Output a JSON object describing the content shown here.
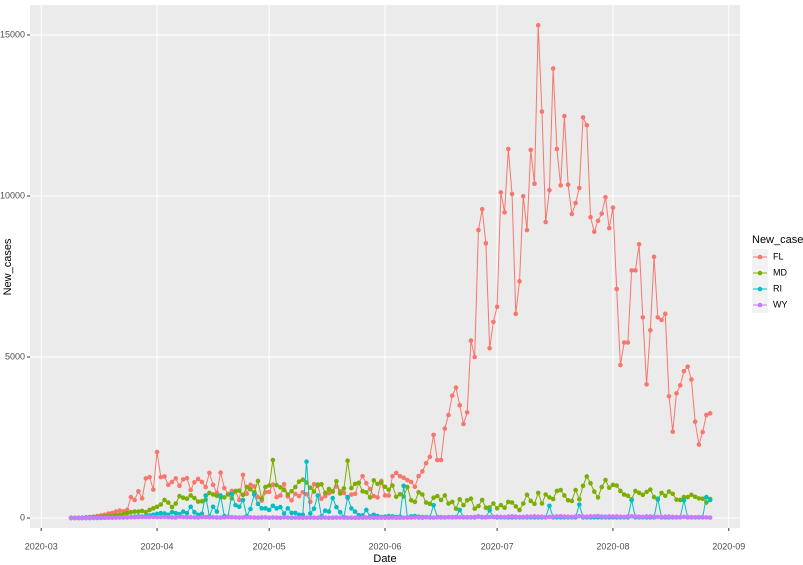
{
  "chart_data": {
    "type": "line",
    "x_label": "Date",
    "y_label": "New_cases",
    "legend_title": "New_cases",
    "legend_position": "right",
    "grid": true,
    "x": [
      "2020-03-09",
      "2020-03-10",
      "2020-03-11",
      "2020-03-12",
      "2020-03-13",
      "2020-03-14",
      "2020-03-15",
      "2020-03-16",
      "2020-03-17",
      "2020-03-18",
      "2020-03-19",
      "2020-03-20",
      "2020-03-21",
      "2020-03-22",
      "2020-03-23",
      "2020-03-24",
      "2020-03-25",
      "2020-03-26",
      "2020-03-27",
      "2020-03-28",
      "2020-03-29",
      "2020-03-30",
      "2020-03-31",
      "2020-04-01",
      "2020-04-02",
      "2020-04-03",
      "2020-04-04",
      "2020-04-05",
      "2020-04-06",
      "2020-04-07",
      "2020-04-08",
      "2020-04-09",
      "2020-04-10",
      "2020-04-11",
      "2020-04-12",
      "2020-04-13",
      "2020-04-14",
      "2020-04-15",
      "2020-04-16",
      "2020-04-17",
      "2020-04-18",
      "2020-04-19",
      "2020-04-20",
      "2020-04-21",
      "2020-04-22",
      "2020-04-23",
      "2020-04-24",
      "2020-04-25",
      "2020-04-26",
      "2020-04-27",
      "2020-04-28",
      "2020-04-29",
      "2020-04-30",
      "2020-05-01",
      "2020-05-02",
      "2020-05-03",
      "2020-05-04",
      "2020-05-05",
      "2020-05-06",
      "2020-05-07",
      "2020-05-08",
      "2020-05-09",
      "2020-05-10",
      "2020-05-11",
      "2020-05-12",
      "2020-05-13",
      "2020-05-14",
      "2020-05-15",
      "2020-05-16",
      "2020-05-17",
      "2020-05-18",
      "2020-05-19",
      "2020-05-20",
      "2020-05-21",
      "2020-05-22",
      "2020-05-23",
      "2020-05-24",
      "2020-05-25",
      "2020-05-26",
      "2020-05-27",
      "2020-05-28",
      "2020-05-29",
      "2020-05-30",
      "2020-05-31",
      "2020-06-01",
      "2020-06-02",
      "2020-06-03",
      "2020-06-04",
      "2020-06-05",
      "2020-06-06",
      "2020-06-07",
      "2020-06-08",
      "2020-06-09",
      "2020-06-10",
      "2020-06-11",
      "2020-06-12",
      "2020-06-13",
      "2020-06-14",
      "2020-06-15",
      "2020-06-16",
      "2020-06-17",
      "2020-06-18",
      "2020-06-19",
      "2020-06-20",
      "2020-06-21",
      "2020-06-22",
      "2020-06-23",
      "2020-06-24",
      "2020-06-25",
      "2020-06-26",
      "2020-06-27",
      "2020-06-28",
      "2020-06-29",
      "2020-06-30",
      "2020-07-01",
      "2020-07-02",
      "2020-07-03",
      "2020-07-04",
      "2020-07-05",
      "2020-07-06",
      "2020-07-07",
      "2020-07-08",
      "2020-07-09",
      "2020-07-10",
      "2020-07-11",
      "2020-07-12",
      "2020-07-13",
      "2020-07-14",
      "2020-07-15",
      "2020-07-16",
      "2020-07-17",
      "2020-07-18",
      "2020-07-19",
      "2020-07-20",
      "2020-07-21",
      "2020-07-22",
      "2020-07-23",
      "2020-07-24",
      "2020-07-25",
      "2020-07-26",
      "2020-07-27",
      "2020-07-28",
      "2020-07-29",
      "2020-07-30",
      "2020-07-31",
      "2020-08-01",
      "2020-08-02",
      "2020-08-03",
      "2020-08-04",
      "2020-08-05",
      "2020-08-06",
      "2020-08-07",
      "2020-08-08",
      "2020-08-09",
      "2020-08-10",
      "2020-08-11",
      "2020-08-12",
      "2020-08-13",
      "2020-08-14",
      "2020-08-15",
      "2020-08-16",
      "2020-08-17",
      "2020-08-18",
      "2020-08-19",
      "2020-08-20",
      "2020-08-21",
      "2020-08-22",
      "2020-08-23",
      "2020-08-24",
      "2020-08-25",
      "2020-08-26",
      "2020-08-27"
    ],
    "series": [
      {
        "name": "FL",
        "color": "#F8766D",
        "values": [
          3,
          2,
          5,
          10,
          20,
          30,
          40,
          60,
          80,
          100,
          140,
          160,
          200,
          230,
          210,
          250,
          650,
          560,
          830,
          610,
          1230,
          1270,
          880,
          2050,
          1270,
          1290,
          1030,
          1120,
          1230,
          1000,
          1200,
          1240,
          870,
          1110,
          1210,
          1120,
          960,
          1400,
          1030,
          780,
          1410,
          930,
          750,
          840,
          820,
          560,
          1340,
          750,
          1030,
          980,
          650,
          540,
          800,
          810,
          1040,
          650,
          700,
          1050,
          670,
          550,
          750,
          680,
          800,
          740,
          500,
          1050,
          1000,
          600,
          680,
          770,
          830,
          980,
          830,
          780,
          620,
          730,
          750,
          1090,
          1300,
          1080,
          900,
          680,
          640,
          1150,
          700,
          700,
          1300,
          1400,
          1300,
          1250,
          1180,
          1120,
          970,
          1300,
          1450,
          1700,
          1900,
          2580,
          1800,
          1800,
          2780,
          3200,
          3800,
          4050,
          3500,
          2920,
          3280,
          5510,
          5000,
          8940,
          9590,
          8530,
          5270,
          6090,
          6560,
          10110,
          9490,
          11460,
          10060,
          6340,
          7350,
          9990,
          8940,
          11430,
          10380,
          15300,
          12620,
          9190,
          10180,
          13960,
          11460,
          10330,
          12480,
          10350,
          9440,
          9780,
          10250,
          12440,
          12200,
          9340,
          8890,
          9230,
          9450,
          9960,
          9000,
          9640,
          7110,
          4750,
          5450,
          5450,
          7690,
          7690,
          8500,
          6230,
          4150,
          5830,
          8110,
          6230,
          6150,
          6340,
          3780,
          2680,
          3870,
          4120,
          4560,
          4700,
          4300,
          2990,
          2280,
          2670,
          3200,
          3250
        ]
      },
      {
        "name": "MD",
        "color": "#7CAE00",
        "values": [
          5,
          5,
          10,
          10,
          15,
          20,
          25,
          30,
          40,
          50,
          60,
          70,
          90,
          100,
          120,
          150,
          180,
          200,
          200,
          220,
          180,
          250,
          300,
          350,
          420,
          560,
          480,
          340,
          450,
          680,
          630,
          600,
          700,
          620,
          510,
          520,
          570,
          780,
          730,
          690,
          650,
          640,
          730,
          610,
          840,
          850,
          720,
          960,
          890,
          800,
          1150,
          600,
          960,
          1010,
          1800,
          1020,
          950,
          870,
          730,
          830,
          960,
          1130,
          1190,
          1100,
          940,
          820,
          1040,
          1050,
          780,
          900,
          820,
          1140,
          760,
          920,
          1780,
          930,
          1060,
          1090,
          830,
          800,
          640,
          1170,
          1060,
          1100,
          970,
          880,
          1010,
          660,
          740,
          670,
          960,
          550,
          500,
          800,
          730,
          480,
          440,
          630,
          680,
          560,
          700,
          450,
          500,
          290,
          580,
          400,
          550,
          600,
          290,
          370,
          560,
          320,
          330,
          450,
          300,
          400,
          320,
          500,
          480,
          360,
          250,
          450,
          720,
          530,
          440,
          780,
          450,
          730,
          640,
          590,
          840,
          870,
          700,
          550,
          530,
          870,
          580,
          1000,
          1290,
          1080,
          820,
          640,
          960,
          1180,
          940,
          1030,
          1010,
          840,
          730,
          690,
          580,
          840,
          780,
          720,
          810,
          880,
          650,
          570,
          780,
          690,
          820,
          750,
          570,
          560,
          650,
          650,
          720,
          660,
          610,
          600,
          480,
          590
        ]
      },
      {
        "name": "RI",
        "color": "#00BFC4",
        "values": [
          0,
          0,
          0,
          0,
          1,
          2,
          3,
          5,
          6,
          10,
          15,
          20,
          20,
          25,
          30,
          20,
          30,
          40,
          50,
          45,
          60,
          80,
          100,
          130,
          150,
          140,
          100,
          180,
          150,
          120,
          200,
          150,
          350,
          180,
          100,
          130,
          700,
          50,
          350,
          200,
          700,
          60,
          40,
          750,
          400,
          350,
          560,
          60,
          280,
          730,
          440,
          300,
          300,
          250,
          380,
          300,
          340,
          140,
          300,
          160,
          160,
          100,
          100,
          1750,
          140,
          290,
          700,
          50,
          230,
          200,
          620,
          340,
          180,
          30,
          650,
          300,
          200,
          90,
          80,
          250,
          50,
          100,
          60,
          30,
          40,
          60,
          50,
          30,
          40,
          1000,
          20,
          50,
          60,
          40,
          30,
          30,
          20,
          400,
          30,
          20,
          20,
          30,
          20,
          30,
          250,
          20,
          20,
          20,
          20,
          50,
          20,
          20,
          240,
          30,
          20,
          20,
          20,
          20,
          20,
          20,
          20,
          20,
          20,
          20,
          20,
          20,
          20,
          20,
          380,
          20,
          20,
          20,
          20,
          20,
          20,
          20,
          420,
          20,
          20,
          20,
          20,
          20,
          20,
          20,
          20,
          20,
          20,
          20,
          20,
          20,
          550,
          20,
          20,
          20,
          20,
          20,
          20,
          600,
          20,
          20,
          20,
          20,
          20,
          20,
          550,
          20,
          20,
          20,
          20,
          20,
          650,
          560
        ]
      },
      {
        "name": "WY",
        "color": "#C77CFF",
        "values": [
          0,
          0,
          0,
          0,
          0,
          0,
          1,
          2,
          3,
          5,
          8,
          10,
          12,
          15,
          18,
          20,
          22,
          25,
          28,
          30,
          30,
          32,
          35,
          28,
          30,
          35,
          25,
          20,
          18,
          40,
          30,
          22,
          25,
          20,
          15,
          30,
          28,
          20,
          25,
          18,
          12,
          20,
          30,
          25,
          20,
          15,
          18,
          22,
          20,
          15,
          12,
          18,
          20,
          10,
          15,
          12,
          8,
          20,
          15,
          10,
          12,
          8,
          10,
          12,
          15,
          10,
          8,
          10,
          12,
          8,
          10,
          15,
          12,
          10,
          8,
          10,
          5,
          8,
          10,
          12,
          8,
          6,
          8,
          10,
          8,
          10,
          12,
          6,
          8,
          10,
          15,
          12,
          20,
          18,
          10,
          25,
          15,
          12,
          20,
          30,
          18,
          25,
          30,
          20,
          22,
          30,
          25,
          28,
          35,
          40,
          30,
          25,
          30,
          35,
          40,
          35,
          30,
          45,
          50,
          40,
          30,
          35,
          45,
          40,
          50,
          45,
          40,
          30,
          35,
          40,
          50,
          55,
          45,
          40,
          35,
          50,
          60,
          45,
          40,
          50,
          55,
          60,
          45,
          40,
          50,
          45,
          50,
          40,
          35,
          50,
          55,
          45,
          40,
          35,
          50,
          45,
          40,
          35,
          30,
          40,
          45,
          35,
          30,
          25,
          35,
          30,
          25,
          20,
          30,
          25,
          20,
          15
        ]
      }
    ],
    "xlim": [
      "2020-02-27",
      "2020-09-04"
    ],
    "xticks": [
      {
        "value": "2020-03-01",
        "label": "2020-03"
      },
      {
        "value": "2020-04-01",
        "label": "2020-04"
      },
      {
        "value": "2020-05-01",
        "label": "2020-05"
      },
      {
        "value": "2020-06-01",
        "label": "2020-06"
      },
      {
        "value": "2020-07-01",
        "label": "2020-07"
      },
      {
        "value": "2020-08-01",
        "label": "2020-08"
      },
      {
        "value": "2020-09-01",
        "label": "2020-09"
      }
    ],
    "ylim": [
      -310,
      15930
    ],
    "yticks": [
      0,
      5000,
      10000,
      15000
    ]
  }
}
